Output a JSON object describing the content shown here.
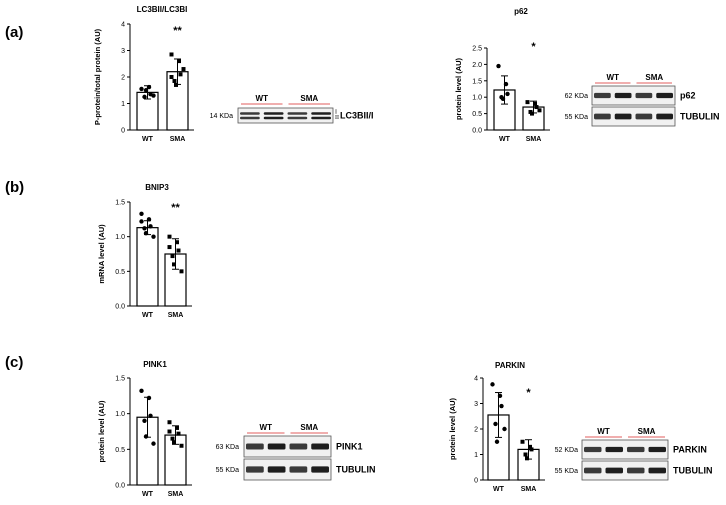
{
  "panel_labels": [
    "(a)",
    "(b)",
    "(c)"
  ],
  "chart_data": [
    {
      "type": "bar",
      "title": "LC3BII/LC3BI",
      "ylabel": "P-protein/total protein (AU)",
      "categories": [
        "WT",
        "SMA"
      ],
      "values": [
        1.42,
        2.2
      ],
      "errors": [
        0.25,
        0.48
      ],
      "ylim": [
        0,
        4
      ],
      "yticks": [
        "0",
        "1",
        "2",
        "3",
        "4"
      ],
      "significance": "**",
      "points": [
        [
          1.55,
          1.62,
          1.35,
          1.25,
          1.5,
          1.3
        ],
        [
          2.85,
          2.6,
          2.1,
          1.85,
          1.7,
          2.3,
          2.0
        ]
      ]
    },
    {
      "type": "bar",
      "title": "p62",
      "ylabel": "protein level (AU)",
      "categories": [
        "WT",
        "SMA"
      ],
      "values": [
        1.22,
        0.7
      ],
      "errors": [
        0.43,
        0.18
      ],
      "ylim": [
        0,
        2.5
      ],
      "yticks": [
        "0.0",
        "0.5",
        "1.0",
        "1.5",
        "2.0",
        "2.5"
      ],
      "significance": "*",
      "points": [
        [
          1.95,
          1.4,
          1.1,
          1.0,
          0.95
        ],
        [
          0.85,
          0.8,
          0.7,
          0.55,
          0.5,
          0.6
        ]
      ]
    },
    {
      "type": "bar",
      "title": "BNIP3",
      "ylabel": "mRNA level (AU)",
      "categories": [
        "WT",
        "SMA"
      ],
      "values": [
        1.13,
        0.75
      ],
      "errors": [
        0.1,
        0.22
      ],
      "ylim": [
        0,
        1.5
      ],
      "yticks": [
        "0.0",
        "0.5",
        "1.0",
        "1.5"
      ],
      "significance": "**",
      "points": [
        [
          1.33,
          1.25,
          1.15,
          1.12,
          1.05,
          1.0,
          1.22
        ],
        [
          1.0,
          0.92,
          0.8,
          0.72,
          0.6,
          0.5,
          0.85
        ]
      ]
    },
    {
      "type": "bar",
      "title": "PINK1",
      "ylabel": "protein level (AU)",
      "categories": [
        "WT",
        "SMA"
      ],
      "values": [
        0.95,
        0.7
      ],
      "errors": [
        0.28,
        0.13
      ],
      "ylim": [
        0,
        1.5
      ],
      "yticks": [
        "0.0",
        "0.5",
        "1.0",
        "1.5"
      ],
      "significance": "",
      "points": [
        [
          1.32,
          1.22,
          0.97,
          0.9,
          0.68,
          0.58
        ],
        [
          0.88,
          0.8,
          0.72,
          0.65,
          0.6,
          0.55,
          0.75
        ]
      ]
    },
    {
      "type": "bar",
      "title": "PARKIN",
      "ylabel": "protein level (AU)",
      "categories": [
        "WT",
        "SMA"
      ],
      "values": [
        2.55,
        1.2
      ],
      "errors": [
        0.88,
        0.38
      ],
      "ylim": [
        0,
        4
      ],
      "yticks": [
        "0",
        "1",
        "2",
        "3",
        "4"
      ],
      "significance": "*",
      "points": [
        [
          3.75,
          3.3,
          2.9,
          2.2,
          1.5,
          2.0
        ],
        [
          1.5,
          1.3,
          1.2,
          1.0,
          0.85
        ]
      ]
    }
  ],
  "blots": [
    {
      "groups": [
        "WT",
        "SMA"
      ],
      "rows": [
        {
          "kda": "14 KDa",
          "protein": "LC3BII/I",
          "roman": [
            "I",
            "II"
          ]
        }
      ]
    },
    {
      "groups": [
        "WT",
        "SMA"
      ],
      "rows": [
        {
          "kda": "62 KDa",
          "protein": "p62"
        },
        {
          "kda": "55 KDa",
          "protein": "TUBULIN"
        }
      ]
    },
    {
      "groups": [
        "WT",
        "SMA"
      ],
      "rows": [
        {
          "kda": "63 KDa",
          "protein": "PINK1"
        },
        {
          "kda": "55 KDa",
          "protein": "TUBULIN"
        }
      ]
    },
    {
      "groups": [
        "WT",
        "SMA"
      ],
      "rows": [
        {
          "kda": "52 KDa",
          "protein": "PARKIN"
        },
        {
          "kda": "55 KDa",
          "protein": "TUBULIN"
        }
      ]
    }
  ],
  "colors": {
    "accent_line": "#e05c5c",
    "bar_fill": "#ffffff",
    "ink": "#000000"
  }
}
